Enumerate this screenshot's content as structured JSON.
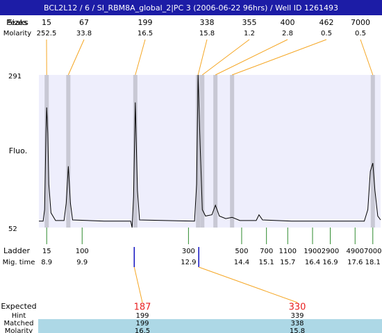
{
  "chart_data": {
    "type": "electropherogram",
    "title": "BCL2L12 / 6 / SI_RBM8A_global_2|PC 3 (2006-06-22 96hrs) / Well ID 1261493",
    "row_labels": {
      "peaks": "Peaks",
      "sizes": "Sizes",
      "molarity": "Molarity",
      "ladder": "Ladder",
      "mig_time": "Mig. time",
      "expected": "Expected",
      "hint": "Hint",
      "matched": "Matched",
      "bottom_molarity": "Molarity"
    },
    "ylabel": "Fluo.",
    "ylim": [
      52,
      291
    ],
    "yticks": [
      52,
      291
    ],
    "xlim": [
      8.68,
      18.32
    ],
    "peaks": {
      "sizes": [
        15,
        67,
        199,
        338,
        355,
        400,
        462,
        7000
      ],
      "molarity": [
        252.5,
        33.8,
        16.5,
        15.8,
        1.2,
        2.8,
        0.5,
        0.5
      ],
      "times": [
        8.9,
        9.51,
        11.4,
        13.17,
        13.29,
        13.66,
        14.13,
        18.1
      ]
    },
    "ladder": {
      "sizes": [
        15,
        100,
        300,
        500,
        700,
        1100,
        1900,
        2900,
        4900,
        7000
      ],
      "times": [
        8.9,
        9.9,
        12.9,
        14.4,
        15.1,
        15.7,
        16.4,
        16.9,
        17.6,
        18.1
      ]
    },
    "expected": {
      "values": [
        187,
        330
      ],
      "times": [
        11.37,
        13.19
      ],
      "hint": [
        199,
        339
      ],
      "matched": [
        199,
        338
      ],
      "molarity": [
        16.5,
        15.8
      ]
    },
    "trace": {
      "time": [
        8.68,
        8.8,
        8.84,
        8.88,
        8.9,
        8.93,
        8.96,
        9.02,
        9.15,
        9.39,
        9.45,
        9.51,
        9.57,
        9.63,
        10.52,
        11.27,
        11.31,
        11.35,
        11.4,
        11.46,
        11.52,
        13.07,
        13.13,
        13.17,
        13.23,
        13.29,
        13.38,
        13.56,
        13.66,
        13.77,
        13.95,
        14.13,
        14.35,
        14.81,
        14.89,
        14.99,
        15.81,
        17.86,
        17.96,
        18.03,
        18.1,
        18.16,
        18.24,
        18.32
      ],
      "fluo": [
        62,
        62,
        80,
        200,
        240,
        200,
        120,
        75,
        63,
        63,
        90,
        148,
        90,
        64,
        62,
        62,
        52,
        100,
        248,
        110,
        64,
        62,
        120,
        291,
        180,
        80,
        70,
        72,
        87,
        70,
        66,
        68,
        63,
        63,
        72,
        64,
        62,
        62,
        80,
        140,
        153,
        110,
        70,
        64
      ]
    }
  }
}
